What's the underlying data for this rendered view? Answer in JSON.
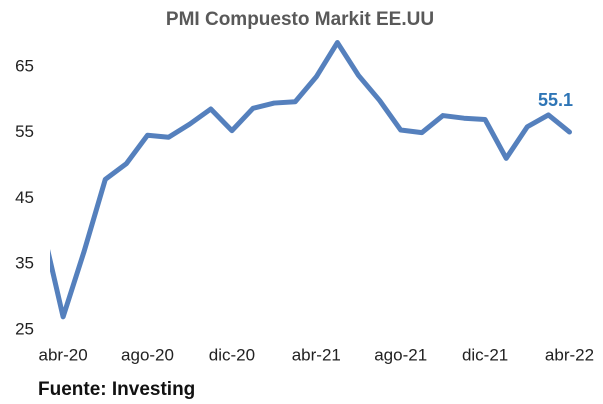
{
  "chart_data": {
    "type": "line",
    "title": "PMI Compuesto Markit EE.UU",
    "source": "Fuente: Investing",
    "categories": [
      null,
      "abr-20",
      null,
      null,
      null,
      "ago-20",
      null,
      null,
      null,
      "dic-20",
      null,
      null,
      null,
      "abr-21",
      null,
      null,
      null,
      "ago-21",
      null,
      null,
      null,
      "dic-21",
      null,
      null,
      null,
      "abr-22"
    ],
    "series": [
      {
        "name": "PMI Compuesto",
        "color": "#5580bd",
        "values": [
          40.9,
          27.0,
          37.0,
          47.9,
          50.3,
          54.6,
          54.3,
          56.3,
          58.6,
          55.3,
          58.7,
          59.5,
          59.7,
          63.5,
          68.7,
          63.7,
          59.9,
          55.4,
          55.0,
          57.6,
          57.2,
          57.0,
          51.1,
          55.9,
          57.7,
          55.1
        ],
        "value_labels": [
          null,
          null,
          null,
          null,
          null,
          null,
          null,
          null,
          null,
          null,
          null,
          null,
          null,
          null,
          null,
          null,
          null,
          null,
          null,
          null,
          null,
          null,
          null,
          null,
          null,
          "55.1"
        ]
      }
    ],
    "ylim": [
      25,
      70
    ],
    "yticks": [
      25,
      35,
      45,
      55,
      65
    ],
    "grid": false
  }
}
